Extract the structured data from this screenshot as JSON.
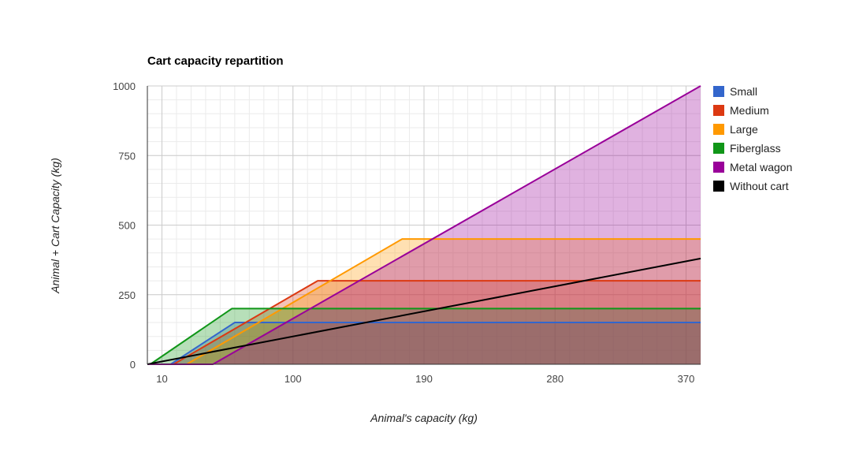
{
  "chart_data": {
    "type": "area",
    "title": "Cart capacity repartition",
    "xlabel": "Animal's capacity (kg)",
    "ylabel": "Animal + Cart Capacity (kg)",
    "xlim": [
      0,
      380
    ],
    "ylim": [
      0,
      1000
    ],
    "x_ticks": [
      10,
      100,
      190,
      280,
      370
    ],
    "y_ticks": [
      0,
      250,
      500,
      750,
      1000
    ],
    "grid": true,
    "legend_position": "right",
    "series": [
      {
        "name": "Small",
        "color": "#3366cc",
        "fill": true,
        "points": [
          [
            0,
            0
          ],
          [
            16,
            0
          ],
          [
            60,
            150
          ],
          [
            380,
            150
          ]
        ]
      },
      {
        "name": "Medium",
        "color": "#dc3912",
        "fill": true,
        "points": [
          [
            0,
            0
          ],
          [
            18,
            0
          ],
          [
            117,
            300
          ],
          [
            380,
            300
          ]
        ]
      },
      {
        "name": "Large",
        "color": "#ff9900",
        "fill": true,
        "points": [
          [
            0,
            0
          ],
          [
            27,
            0
          ],
          [
            175,
            450
          ],
          [
            380,
            450
          ]
        ]
      },
      {
        "name": "Fiberglass",
        "color": "#109618",
        "fill": true,
        "points": [
          [
            0,
            0
          ],
          [
            2,
            0
          ],
          [
            58,
            200
          ],
          [
            380,
            200
          ]
        ]
      },
      {
        "name": "Metal wagon",
        "color": "#990099",
        "fill": true,
        "points": [
          [
            0,
            0
          ],
          [
            45,
            0
          ],
          [
            380,
            1000
          ]
        ]
      },
      {
        "name": "Without cart",
        "color": "#000000",
        "fill": false,
        "points": [
          [
            0,
            0
          ],
          [
            380,
            380
          ]
        ]
      }
    ]
  }
}
